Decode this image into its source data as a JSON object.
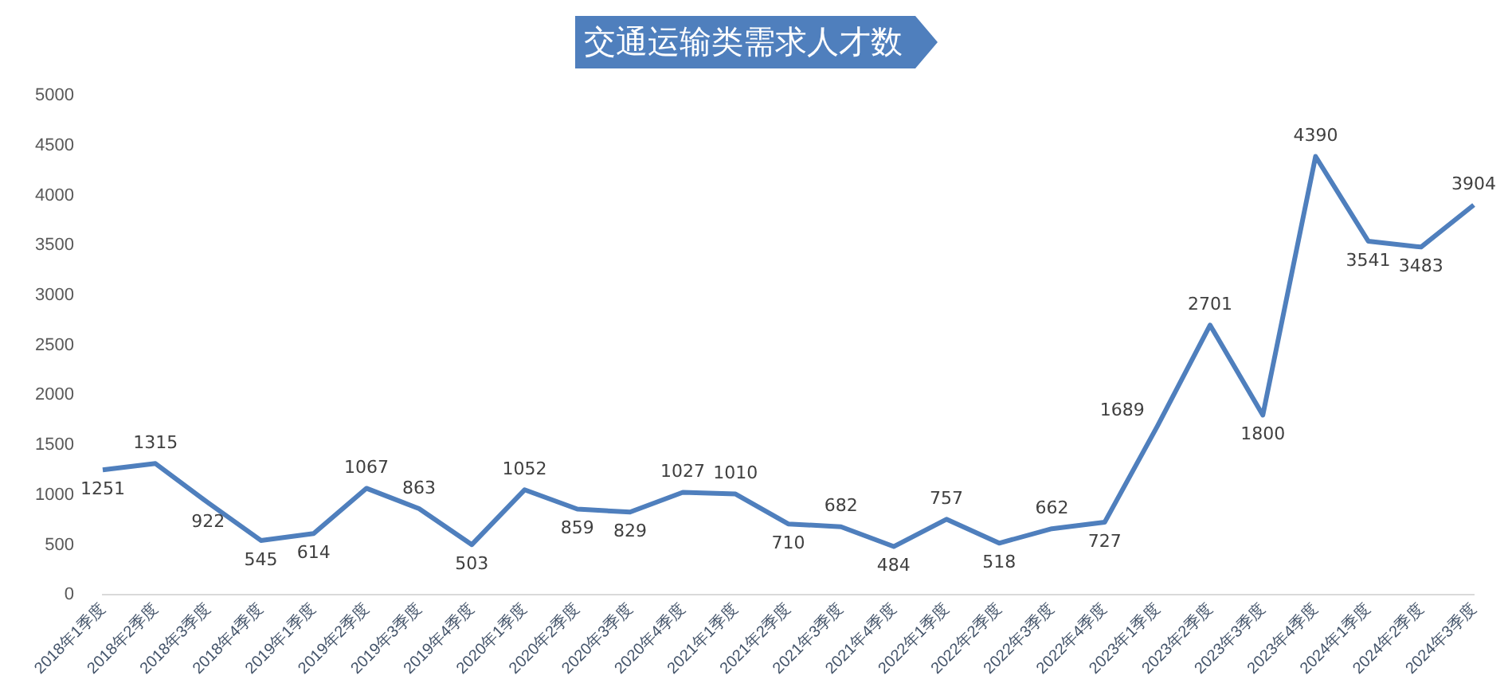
{
  "chart_data": {
    "type": "line",
    "title": "交通运输类需求人才数",
    "categories": [
      "2018年1季度",
      "2018年2季度",
      "2018年3季度",
      "2018年4季度",
      "2019年1季度",
      "2019年2季度",
      "2019年3季度",
      "2019年4季度",
      "2020年1季度",
      "2020年2季度",
      "2020年3季度",
      "2020年4季度",
      "2021年1季度",
      "2021年2季度",
      "2021年3季度",
      "2021年4季度",
      "2022年1季度",
      "2022年2季度",
      "2022年3季度",
      "2022年4季度",
      "2023年1季度",
      "2023年2季度",
      "2023年3季度",
      "2023年4季度",
      "2024年1季度",
      "2024年2季度",
      "2024年3季度"
    ],
    "series": [
      {
        "color": "#4f7fbd",
        "values": [
          1251,
          1315,
          922,
          545,
          614,
          1067,
          863,
          503,
          1052,
          859,
          829,
          1027,
          1010,
          710,
          682,
          484,
          757,
          518,
          662,
          727,
          1689,
          2701,
          1800,
          4390,
          3541,
          3483,
          3904
        ]
      }
    ],
    "ylim": [
      0,
      5000
    ],
    "yticks": [
      0,
      500,
      1000,
      1500,
      2000,
      2500,
      3000,
      3500,
      4000,
      4500,
      5000
    ],
    "grid": false,
    "legend": false,
    "marker": "none",
    "line_style": "solid",
    "data_labels": true
  }
}
